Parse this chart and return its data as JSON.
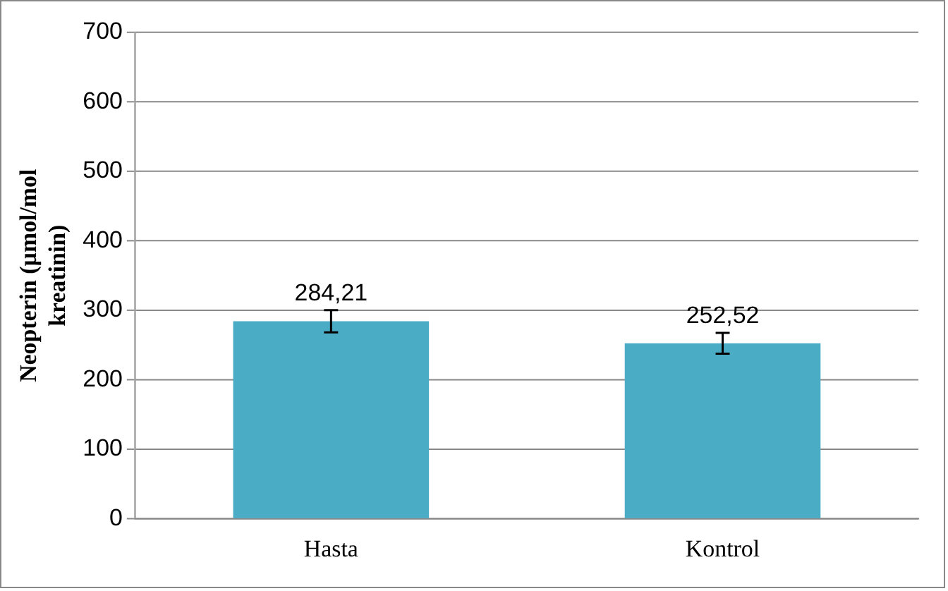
{
  "chart_data": {
    "type": "bar",
    "ylabel": "Neopterin (µmol/mol kreatinin)",
    "categories": [
      "Hasta",
      "Kontrol"
    ],
    "values": [
      284.21,
      252.52
    ],
    "color": "#4bacc6",
    "errors": [
      16,
      15
    ],
    "value_labels": [
      "284,21",
      "252,52"
    ],
    "ylim": [
      0,
      700
    ],
    "yticks": [
      0,
      100,
      200,
      300,
      400,
      500,
      600,
      700
    ],
    "grid": "y",
    "legend": false
  }
}
